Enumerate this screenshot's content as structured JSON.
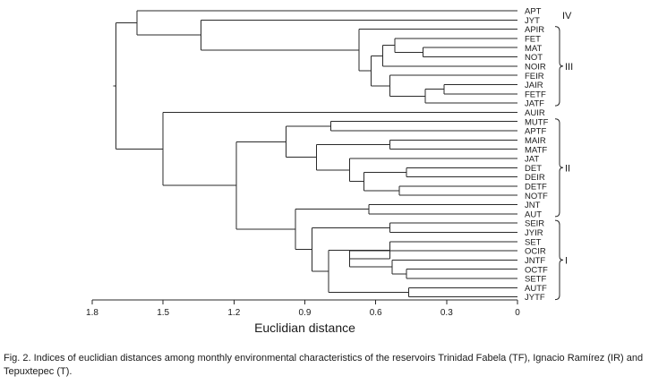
{
  "chart_data": {
    "type": "dendrogram",
    "xlabel": "Euclidian distance",
    "xlim": [
      1.8,
      0
    ],
    "x_ticks": [
      "1.8",
      "1.5",
      "1.2",
      "0.9",
      "0.6",
      "0.3",
      "0"
    ],
    "x_tick_values": [
      1.8,
      1.5,
      1.2,
      0.9,
      0.6,
      0.3,
      0
    ],
    "leaves": [
      "APT",
      "JYT",
      "APIR",
      "FET",
      "MAT",
      "NOT",
      "NOIR",
      "FEIR",
      "JAIR",
      "FETF",
      "JATF",
      "AUIR",
      "MUTF",
      "APTF",
      "MAIR",
      "MATF",
      "JAT",
      "DET",
      "DEIR",
      "DETF",
      "NOTF",
      "JNT",
      "AUT",
      "SEIR",
      "JYIR",
      "SET",
      "OCIR",
      "JNTF",
      "OCTF",
      "SETF",
      "AUTF",
      "JYTF"
    ],
    "merges": [
      {
        "id": "n1",
        "children": [
          "MAT",
          "NOT"
        ],
        "height": 0.4
      },
      {
        "id": "n2",
        "children": [
          "FET",
          "n1"
        ],
        "height": 0.52
      },
      {
        "id": "n3",
        "children": [
          "n2",
          "NOIR"
        ],
        "height": 0.57
      },
      {
        "id": "n4",
        "children": [
          "JAIR",
          "FETF"
        ],
        "height": 0.31
      },
      {
        "id": "n5",
        "children": [
          "n4",
          "JATF"
        ],
        "height": 0.39
      },
      {
        "id": "n6",
        "children": [
          "FEIR",
          "n5"
        ],
        "height": 0.54
      },
      {
        "id": "n7",
        "children": [
          "n3",
          "n6"
        ],
        "height": 0.62
      },
      {
        "id": "n8",
        "children": [
          "APIR",
          "n7"
        ],
        "height": 0.67
      },
      {
        "id": "n9",
        "children": [
          "JYT",
          "n8"
        ],
        "height": 1.34
      },
      {
        "id": "n10",
        "children": [
          "APT",
          "n9"
        ],
        "height": 1.61
      },
      {
        "id": "n11",
        "children": [
          "MUTF",
          "APTF"
        ],
        "height": 0.79
      },
      {
        "id": "n12",
        "children": [
          "MAIR",
          "MATF"
        ],
        "height": 0.54
      },
      {
        "id": "n13",
        "children": [
          "DET",
          "DEIR"
        ],
        "height": 0.47
      },
      {
        "id": "n14",
        "children": [
          "DETF",
          "NOTF"
        ],
        "height": 0.5
      },
      {
        "id": "n15",
        "children": [
          "n13",
          "n14"
        ],
        "height": 0.65
      },
      {
        "id": "n16",
        "children": [
          "JAT",
          "n15"
        ],
        "height": 0.71
      },
      {
        "id": "n17",
        "children": [
          "n12",
          "n16"
        ],
        "height": 0.85
      },
      {
        "id": "n18",
        "children": [
          "n11",
          "n17"
        ],
        "height": 0.98
      },
      {
        "id": "n19",
        "children": [
          "JNT",
          "AUT"
        ],
        "height": 0.63
      },
      {
        "id": "n20",
        "children": [
          "SEIR",
          "JYIR"
        ],
        "height": 0.54
      },
      {
        "id": "n21",
        "children": [
          "OCTF",
          "SETF"
        ],
        "height": 0.47
      },
      {
        "id": "n22",
        "children": [
          "JNTF",
          "n21"
        ],
        "height": 0.53
      },
      {
        "id": "n23",
        "children": [
          "OCIR",
          "n22"
        ],
        "height": 0.71
      },
      {
        "id": "n24",
        "children": [
          "SET",
          "n23"
        ],
        "height": 0.54
      },
      {
        "id": "n25",
        "children": [
          "AUTF",
          "JYTF"
        ],
        "height": 0.46
      },
      {
        "id": "n26",
        "children": [
          "n24",
          "n25"
        ],
        "height": 0.8
      },
      {
        "id": "n27",
        "children": [
          "n20",
          "n26"
        ],
        "height": 0.87
      },
      {
        "id": "n28",
        "children": [
          "n19",
          "n27"
        ],
        "height": 0.94
      },
      {
        "id": "n29",
        "children": [
          "n18",
          "n28"
        ],
        "height": 1.19
      },
      {
        "id": "n30",
        "children": [
          "AUIR",
          "n29"
        ],
        "height": 1.5
      },
      {
        "id": "n31",
        "children": [
          "n10",
          "n30"
        ],
        "height": 1.7
      }
    ],
    "groups": [
      {
        "label": "IV",
        "from": "APT",
        "to": "JYT",
        "bracket": false
      },
      {
        "label": "III",
        "from": "APIR",
        "to": "JATF",
        "bracket": true
      },
      {
        "label": "II",
        "from": "MUTF",
        "to": "AUT",
        "bracket": true
      },
      {
        "label": "I",
        "from": "SEIR",
        "to": "JYTF",
        "bracket": true
      }
    ]
  },
  "caption": "Fig. 2. Indices of euclidian distances among monthly environmental characteristics of the reservoirs Trinidad Fabela (TF), Ignacio Ramírez (IR) and Tepuxtepec (T).",
  "colors": {
    "line": "#2a2a2a",
    "text": "#1a1a1a",
    "background": "#ffffff"
  }
}
